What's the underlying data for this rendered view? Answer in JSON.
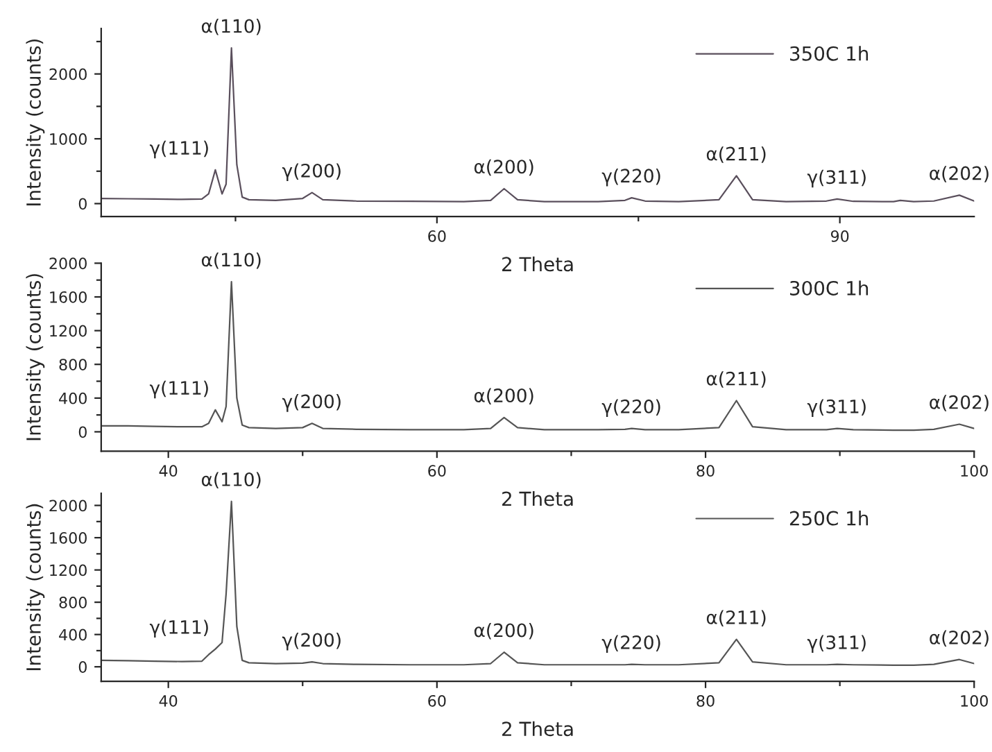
{
  "chart_data": [
    {
      "type": "line",
      "xlabel": "2 Theta",
      "ylabel": "Intensity (counts)",
      "xlim": [
        35,
        100
      ],
      "ylim": [
        -200,
        2700
      ],
      "xticks": [
        {
          "value": 45,
          "label": null
        },
        60,
        {
          "value": 75,
          "label": null
        },
        90
      ],
      "yticks": [
        0,
        {
          "value": 500,
          "label": null
        },
        1000,
        {
          "value": 1500,
          "label": null
        },
        2000,
        {
          "value": 2500,
          "label": null
        }
      ],
      "legend": "top right",
      "grid": false,
      "x": [
        35,
        37,
        39,
        41,
        42.5,
        43,
        43.5,
        44,
        44.3,
        44.7,
        45.1,
        45.5,
        46,
        48,
        50,
        50.7,
        51.5,
        54,
        58,
        62,
        64,
        65,
        66,
        68,
        72,
        74,
        74.5,
        75.5,
        78,
        81,
        82.3,
        83.5,
        86,
        89,
        89.8,
        91,
        94,
        94.5,
        95.5,
        97,
        98.9,
        100
      ],
      "series": [
        {
          "name": "350C 1h",
          "color": "#5a4f5c",
          "values": [
            80,
            75,
            70,
            65,
            70,
            150,
            520,
            150,
            300,
            2400,
            600,
            100,
            60,
            50,
            80,
            170,
            60,
            40,
            35,
            30,
            50,
            230,
            60,
            30,
            30,
            50,
            90,
            40,
            30,
            60,
            430,
            60,
            30,
            40,
            70,
            35,
            30,
            50,
            30,
            40,
            130,
            40
          ]
        }
      ],
      "annotations": [
        {
          "text": "γ(111)",
          "x": 43.5,
          "y": 520
        },
        {
          "text": "α(110)",
          "x": 44.7,
          "y": 2400
        },
        {
          "text": "γ(200)",
          "x": 50.7,
          "y": 170
        },
        {
          "text": "α(200)",
          "x": 65,
          "y": 230
        },
        {
          "text": "γ(220)",
          "x": 74.5,
          "y": 90
        },
        {
          "text": "α(211)",
          "x": 82.3,
          "y": 430
        },
        {
          "text": "γ(311)",
          "x": 89.8,
          "y": 70
        },
        {
          "text": "α(202)",
          "x": 98.9,
          "y": 130
        }
      ]
    },
    {
      "type": "line",
      "xlabel": "2 Theta",
      "ylabel": "Intensity (counts)",
      "xlim": [
        35,
        100
      ],
      "ylim": [
        -230,
        2000
      ],
      "xticks": [
        40,
        {
          "value": 50,
          "label": null
        },
        60,
        {
          "value": 70,
          "label": null
        },
        80,
        {
          "value": 90,
          "label": null
        },
        100
      ],
      "yticks": [
        0,
        {
          "value": 200,
          "label": null
        },
        400,
        {
          "value": 600,
          "label": null
        },
        800,
        {
          "value": 1000,
          "label": null
        },
        1200,
        {
          "value": 1400,
          "label": null
        },
        1600,
        {
          "value": 1800,
          "label": null
        },
        2000
      ],
      "legend": "top right",
      "grid": false,
      "x": [
        35,
        37,
        39,
        41,
        42.5,
        43,
        43.5,
        44,
        44.3,
        44.7,
        45.1,
        45.5,
        46,
        48,
        50,
        50.7,
        51.5,
        54,
        58,
        62,
        64,
        65,
        66,
        68,
        72,
        74,
        74.5,
        75.5,
        78,
        81,
        82.3,
        83.5,
        86,
        89,
        89.8,
        91,
        94,
        94.5,
        95.5,
        97,
        98.9,
        100
      ],
      "series": [
        {
          "name": "300C 1h",
          "color": "#555555",
          "values": [
            70,
            70,
            65,
            60,
            60,
            100,
            260,
            120,
            300,
            1780,
            400,
            80,
            50,
            40,
            50,
            100,
            40,
            30,
            25,
            25,
            40,
            170,
            50,
            25,
            25,
            30,
            40,
            25,
            25,
            50,
            370,
            60,
            25,
            25,
            40,
            25,
            20,
            20,
            20,
            30,
            90,
            40
          ]
        }
      ],
      "annotations": [
        {
          "text": "γ(111)",
          "x": 43.5,
          "y": 260
        },
        {
          "text": "α(110)",
          "x": 44.7,
          "y": 1780
        },
        {
          "text": "γ(200)",
          "x": 50.7,
          "y": 100
        },
        {
          "text": "α(200)",
          "x": 65,
          "y": 170
        },
        {
          "text": "γ(220)",
          "x": 74.5,
          "y": 40
        },
        {
          "text": "α(211)",
          "x": 82.3,
          "y": 370
        },
        {
          "text": "γ(311)",
          "x": 89.8,
          "y": 40
        },
        {
          "text": "α(202)",
          "x": 98.9,
          "y": 90
        }
      ]
    },
    {
      "type": "line",
      "xlabel": "2 Theta",
      "ylabel": "Intensity (counts)",
      "xlim": [
        35,
        100
      ],
      "ylim": [
        -180,
        2150
      ],
      "xticks": [
        40,
        {
          "value": 50,
          "label": null
        },
        60,
        {
          "value": 70,
          "label": null
        },
        80,
        {
          "value": 90,
          "label": null
        },
        100
      ],
      "yticks": [
        0,
        {
          "value": 200,
          "label": null
        },
        400,
        {
          "value": 600,
          "label": null
        },
        800,
        {
          "value": 1000,
          "label": null
        },
        1200,
        {
          "value": 1400,
          "label": null
        },
        1600,
        {
          "value": 1800,
          "label": null
        },
        2000
      ],
      "legend": "top right",
      "grid": false,
      "x": [
        35,
        37,
        39,
        41,
        42.5,
        43,
        43.5,
        44,
        44.3,
        44.7,
        45.1,
        45.5,
        46,
        48,
        50,
        50.7,
        51.5,
        54,
        58,
        62,
        64,
        65,
        66,
        68,
        72,
        74,
        74.5,
        75.5,
        78,
        81,
        82.3,
        83.5,
        86,
        89,
        89.8,
        91,
        94,
        94.5,
        95.5,
        97,
        98.9,
        100
      ],
      "series": [
        {
          "name": "250C 1h",
          "color": "#555555",
          "values": [
            80,
            75,
            70,
            65,
            70,
            150,
            220,
            300,
            900,
            2050,
            500,
            80,
            50,
            40,
            45,
            60,
            40,
            30,
            25,
            25,
            40,
            180,
            50,
            25,
            25,
            25,
            30,
            25,
            25,
            50,
            340,
            60,
            25,
            25,
            30,
            25,
            20,
            20,
            20,
            30,
            90,
            40
          ]
        }
      ],
      "annotations": [
        {
          "text": "γ(111)",
          "x": 43.5,
          "y": 220
        },
        {
          "text": "α(110)",
          "x": 44.7,
          "y": 2050
        },
        {
          "text": "γ(200)",
          "x": 50.7,
          "y": 60
        },
        {
          "text": "α(200)",
          "x": 65,
          "y": 180
        },
        {
          "text": "γ(220)",
          "x": 74.5,
          "y": 30
        },
        {
          "text": "α(211)",
          "x": 82.3,
          "y": 340
        },
        {
          "text": "γ(311)",
          "x": 89.8,
          "y": 30
        },
        {
          "text": "α(202)",
          "x": 98.9,
          "y": 90
        }
      ]
    }
  ]
}
